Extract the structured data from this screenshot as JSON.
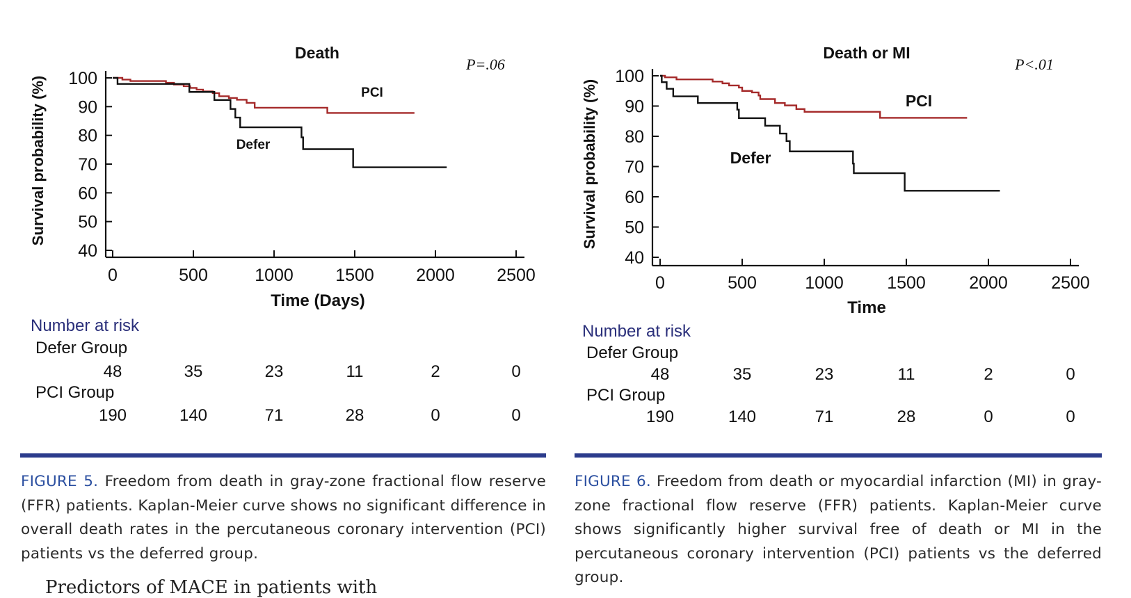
{
  "figures": [
    {
      "figure_label": "FIGURE 5.",
      "caption": "Freedom from death in gray-zone fractional flow reserve (FFR) patients. Kaplan-Meier curve shows no significant difference in overall death rates in the percutaneous coronary intervention (PCI) patients vs the deferred group.",
      "number_at_risk": {
        "heading": "Number at risk",
        "groups": [
          {
            "label": "Defer Group",
            "values": [
              "48",
              "35",
              "23",
              "11",
              "2",
              "0"
            ]
          },
          {
            "label": "PCI Group",
            "values": [
              "190",
              "140",
              "71",
              "28",
              "0",
              "0"
            ]
          }
        ]
      }
    },
    {
      "figure_label": "FIGURE 6.",
      "caption": "Freedom from death or myocardial infarction (MI) in gray-zone fractional flow reserve (FFR) patients. Kaplan-Meier curve shows significantly higher survival free of death or MI in the percutaneous coronary intervention (PCI) patients vs the deferred group.",
      "number_at_risk": {
        "heading": "Number at risk",
        "groups": [
          {
            "label": "Defer Group",
            "values": [
              "48",
              "35",
              "23",
              "11",
              "2",
              "0"
            ]
          },
          {
            "label": "PCI Group",
            "values": [
              "190",
              "140",
              "71",
              "28",
              "0",
              "0"
            ]
          }
        ]
      }
    }
  ],
  "following_text": "Predictors of MACE in patients with",
  "colors": {
    "pci": "#a52a2a",
    "defer": "#111111",
    "rule": "#2b3b8c",
    "figure_label": "#2b4fa0",
    "risk_heading": "#2a2f7a"
  },
  "chart_data": [
    {
      "type": "line",
      "step": true,
      "title": "Death",
      "p_value": "P=.06",
      "xlabel": "Time (Days)",
      "ylabel": "Survival probability (%)",
      "xlim": [
        0,
        2500
      ],
      "ylim": [
        40,
        100
      ],
      "xticks": [
        "0",
        "500",
        "1000",
        "1500",
        "2000",
        "2500"
      ],
      "yticks": [
        "40",
        "50",
        "60",
        "70",
        "80",
        "90",
        "100"
      ],
      "grid": false,
      "series": [
        {
          "name": "PCI",
          "color": "#a52a2a",
          "points": [
            [
              0,
              100
            ],
            [
              60,
              99.4
            ],
            [
              110,
              98.9
            ],
            [
              330,
              98.3
            ],
            [
              380,
              97.7
            ],
            [
              440,
              97.1
            ],
            [
              480,
              96.5
            ],
            [
              520,
              95.9
            ],
            [
              560,
              95.3
            ],
            [
              620,
              94.7
            ],
            [
              660,
              93.6
            ],
            [
              720,
              93.0
            ],
            [
              770,
              92.4
            ],
            [
              830,
              91.3
            ],
            [
              880,
              89.6
            ],
            [
              1330,
              87.8
            ],
            [
              1870,
              87.8
            ]
          ]
        },
        {
          "name": "Defer",
          "color": "#111111",
          "points": [
            [
              0,
              100
            ],
            [
              30,
              97.9
            ],
            [
              475,
              95.1
            ],
            [
              630,
              92.3
            ],
            [
              730,
              89.2
            ],
            [
              760,
              86.2
            ],
            [
              790,
              82.8
            ],
            [
              1170,
              79.3
            ],
            [
              1180,
              75.2
            ],
            [
              1490,
              68.9
            ],
            [
              2070,
              68.9
            ]
          ]
        }
      ]
    },
    {
      "type": "line",
      "step": true,
      "title": "Death or MI",
      "p_value": "P<.01",
      "xlabel": "Time",
      "ylabel": "Survival probability (%)",
      "xlim": [
        0,
        2500
      ],
      "ylim": [
        40,
        100
      ],
      "xticks": [
        "0",
        "500",
        "1000",
        "1500",
        "2000",
        "2500"
      ],
      "yticks": [
        "40",
        "50",
        "60",
        "70",
        "80",
        "90",
        "100"
      ],
      "grid": false,
      "series": [
        {
          "name": "PCI",
          "color": "#a52a2a",
          "points": [
            [
              0,
              100
            ],
            [
              30,
              99.5
            ],
            [
              100,
              98.8
            ],
            [
              320,
              98.1
            ],
            [
              380,
              97.5
            ],
            [
              420,
              96.8
            ],
            [
              480,
              96.1
            ],
            [
              500,
              95.0
            ],
            [
              560,
              94.5
            ],
            [
              600,
              93.5
            ],
            [
              610,
              92.3
            ],
            [
              700,
              91.0
            ],
            [
              760,
              90.2
            ],
            [
              830,
              89.0
            ],
            [
              880,
              88.1
            ],
            [
              1340,
              86.1
            ],
            [
              1870,
              86.1
            ]
          ]
        },
        {
          "name": "Defer",
          "color": "#111111",
          "points": [
            [
              0,
              100
            ],
            [
              10,
              97.9
            ],
            [
              40,
              95.7
            ],
            [
              80,
              93.2
            ],
            [
              230,
              91.0
            ],
            [
              470,
              88.8
            ],
            [
              480,
              86.0
            ],
            [
              640,
              83.5
            ],
            [
              730,
              80.9
            ],
            [
              770,
              78.4
            ],
            [
              790,
              75.0
            ],
            [
              1175,
              71.0
            ],
            [
              1180,
              67.8
            ],
            [
              1490,
              62.0
            ],
            [
              2070,
              62.0
            ]
          ]
        }
      ]
    }
  ]
}
